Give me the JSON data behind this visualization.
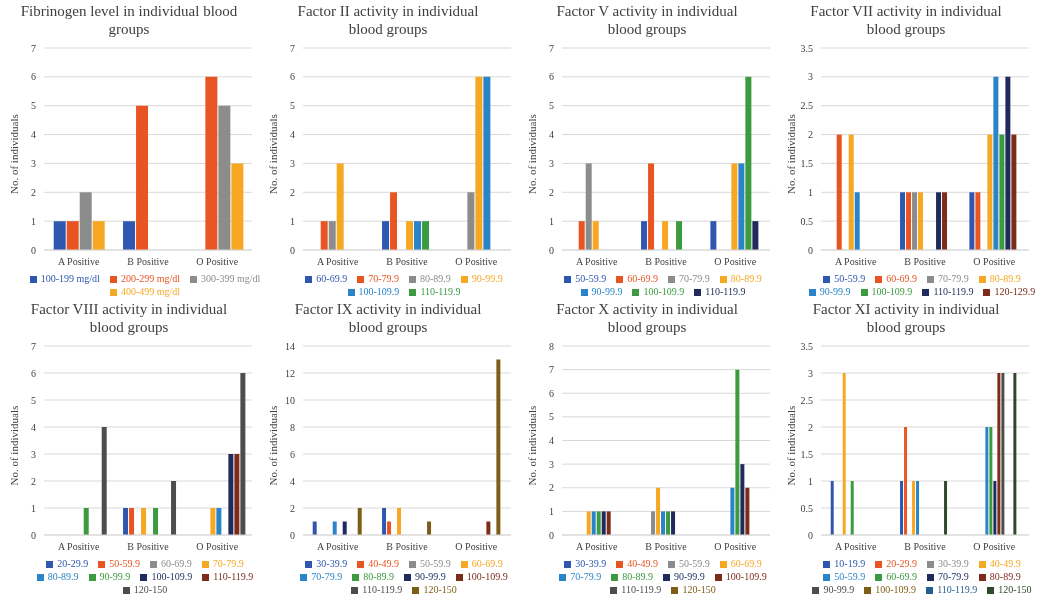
{
  "chart_data": [
    {
      "type": "bar",
      "title": "Fibrinogen level in individual blood groups",
      "ylabel": "No. of individuals",
      "categories": [
        "A Positive",
        "B Positive",
        "O Positive"
      ],
      "ylim": [
        0,
        7
      ],
      "yticks": [
        0,
        1,
        2,
        3,
        4,
        5,
        6,
        7
      ],
      "grid": "y",
      "legend": "bottom",
      "series": [
        {
          "name": "100-199 mg/dl",
          "color": "#3057b0",
          "values": [
            1,
            1,
            0
          ]
        },
        {
          "name": "200-299 mg/dl",
          "color": "#e85523",
          "values": [
            1,
            5,
            6
          ]
        },
        {
          "name": "300-399 mg/dl",
          "color": "#8c8c8c",
          "values": [
            2,
            0,
            5
          ]
        },
        {
          "name": "400-499 mg/dl",
          "color": "#f7a823",
          "values": [
            1,
            0,
            3
          ]
        }
      ]
    },
    {
      "type": "bar",
      "title": "Factor II activity in individual blood groups",
      "ylabel": "No. of individuals",
      "categories": [
        "A Positive",
        "B Positive",
        "O Positive"
      ],
      "ylim": [
        0,
        7
      ],
      "yticks": [
        0,
        1,
        2,
        3,
        4,
        5,
        6,
        7
      ],
      "grid": "y",
      "legend": "bottom",
      "series": [
        {
          "name": "60-69.9",
          "color": "#3057b0",
          "values": [
            0,
            1,
            0
          ]
        },
        {
          "name": "70-79.9",
          "color": "#e85523",
          "values": [
            1,
            2,
            0
          ]
        },
        {
          "name": "80-89.9",
          "color": "#8c8c8c",
          "values": [
            1,
            0,
            2
          ]
        },
        {
          "name": "90-99.9",
          "color": "#f7a823",
          "values": [
            3,
            1,
            6
          ]
        },
        {
          "name": "100-109.9",
          "color": "#2a84c8",
          "values": [
            0,
            1,
            6
          ]
        },
        {
          "name": "110-119.9",
          "color": "#3c9a40",
          "values": [
            0,
            1,
            0
          ]
        }
      ]
    },
    {
      "type": "bar",
      "title": "Factor V activity in individual blood groups",
      "ylabel": "No. of individuals",
      "categories": [
        "A Positive",
        "B Positive",
        "O Positive"
      ],
      "ylim": [
        0,
        7
      ],
      "yticks": [
        0,
        1,
        2,
        3,
        4,
        5,
        6,
        7
      ],
      "grid": "y",
      "legend": "bottom",
      "series": [
        {
          "name": "50-59.9",
          "color": "#3057b0",
          "values": [
            0,
            1,
            1
          ]
        },
        {
          "name": "60-69.9",
          "color": "#e85523",
          "values": [
            1,
            3,
            0
          ]
        },
        {
          "name": "70-79.9",
          "color": "#8c8c8c",
          "values": [
            3,
            0,
            0
          ]
        },
        {
          "name": "80-89.9",
          "color": "#f7a823",
          "values": [
            1,
            1,
            3
          ]
        },
        {
          "name": "90-99.9",
          "color": "#2a84c8",
          "values": [
            0,
            0,
            3
          ]
        },
        {
          "name": "100-109.9",
          "color": "#3c9a40",
          "values": [
            0,
            1,
            6
          ]
        },
        {
          "name": "110-119.9",
          "color": "#1f2b5c",
          "values": [
            0,
            0,
            1
          ]
        }
      ]
    },
    {
      "type": "bar",
      "title": "Factor VII activity in individual blood groups",
      "ylabel": "No. of individuals",
      "categories": [
        "A Positive",
        "B Positive",
        "O Positive"
      ],
      "ylim": [
        0,
        3.5
      ],
      "yticks": [
        0,
        0.5,
        1,
        1.5,
        2,
        2.5,
        3,
        3.5
      ],
      "grid": "y",
      "legend": "bottom",
      "series": [
        {
          "name": "50-59.9",
          "color": "#3057b0",
          "values": [
            0,
            1,
            1
          ]
        },
        {
          "name": "60-69.9",
          "color": "#e85523",
          "values": [
            2,
            1,
            1
          ]
        },
        {
          "name": "70-79.9",
          "color": "#8c8c8c",
          "values": [
            0,
            1,
            0
          ]
        },
        {
          "name": "80-89.9",
          "color": "#f7a823",
          "values": [
            2,
            1,
            2
          ]
        },
        {
          "name": "90-99.9",
          "color": "#2a84c8",
          "values": [
            1,
            0,
            3
          ]
        },
        {
          "name": "100-109.9",
          "color": "#3c9a40",
          "values": [
            0,
            0,
            2
          ]
        },
        {
          "name": "110-119.9",
          "color": "#1f2b5c",
          "values": [
            0,
            1,
            3
          ]
        },
        {
          "name": "120-129.9",
          "color": "#7e2c1a",
          "values": [
            0,
            1,
            2
          ]
        }
      ]
    },
    {
      "type": "bar",
      "title": "Factor VIII activity in individual blood groups",
      "ylabel": "No. of individuals",
      "categories": [
        "A Positive",
        "B Positive",
        "O Positive"
      ],
      "ylim": [
        0,
        7
      ],
      "yticks": [
        0,
        1,
        2,
        3,
        4,
        5,
        6,
        7
      ],
      "grid": "y",
      "legend": "bottom",
      "series": [
        {
          "name": "20-29.9",
          "color": "#3057b0",
          "values": [
            0,
            1,
            0
          ]
        },
        {
          "name": "50-59.9",
          "color": "#e85523",
          "values": [
            0,
            1,
            0
          ]
        },
        {
          "name": "60-69.9",
          "color": "#8c8c8c",
          "values": [
            0,
            0,
            0
          ]
        },
        {
          "name": "70-79.9",
          "color": "#f7a823",
          "values": [
            0,
            1,
            1
          ]
        },
        {
          "name": "80-89.9",
          "color": "#2a84c8",
          "values": [
            0,
            0,
            1
          ]
        },
        {
          "name": "90-99.9",
          "color": "#3c9a40",
          "values": [
            1,
            1,
            0
          ]
        },
        {
          "name": "100-109.9",
          "color": "#1f2b5c",
          "values": [
            0,
            0,
            3
          ]
        },
        {
          "name": "110-119.9",
          "color": "#7e2c1a",
          "values": [
            0,
            0,
            3
          ]
        },
        {
          "name": "120-150",
          "color": "#4d4d4d",
          "values": [
            4,
            2,
            6
          ]
        }
      ]
    },
    {
      "type": "bar",
      "title": "Factor IX activity in individual blood groups",
      "ylabel": "No. of individuals",
      "categories": [
        "A Positive",
        "B Positive",
        "O Positive"
      ],
      "ylim": [
        0,
        14
      ],
      "yticks": [
        0,
        2,
        4,
        6,
        8,
        10,
        12,
        14
      ],
      "grid": "y",
      "legend": "bottom",
      "series": [
        {
          "name": "30-39.9",
          "color": "#3057b0",
          "values": [
            1,
            2,
            0
          ]
        },
        {
          "name": "40-49.9",
          "color": "#e85523",
          "values": [
            0,
            1,
            0
          ]
        },
        {
          "name": "50-59.9",
          "color": "#8c8c8c",
          "values": [
            0,
            0,
            0
          ]
        },
        {
          "name": "60-69.9",
          "color": "#f7a823",
          "values": [
            0,
            2,
            0
          ]
        },
        {
          "name": "70-79.9",
          "color": "#2a84c8",
          "values": [
            1,
            0,
            0
          ]
        },
        {
          "name": "80-89.9",
          "color": "#3c9a40",
          "values": [
            0,
            0,
            0
          ]
        },
        {
          "name": "90-99.9",
          "color": "#1f2b5c",
          "values": [
            1,
            0,
            0
          ]
        },
        {
          "name": "100-109.9",
          "color": "#7e2c1a",
          "values": [
            0,
            0,
            1
          ]
        },
        {
          "name": "110-119.9",
          "color": "#4d4d4d",
          "values": [
            0,
            0,
            0
          ]
        },
        {
          "name": "120-150",
          "color": "#7d5e16",
          "values": [
            2,
            1,
            13
          ]
        }
      ]
    },
    {
      "type": "bar",
      "title": "Factor X activity in individual blood groups",
      "ylabel": "No. of individuals",
      "categories": [
        "A Positive",
        "B Positive",
        "O Positive"
      ],
      "ylim": [
        0,
        8
      ],
      "yticks": [
        0,
        1,
        2,
        3,
        4,
        5,
        6,
        7,
        8
      ],
      "grid": "y",
      "legend": "bottom",
      "series": [
        {
          "name": "30-39.9",
          "color": "#3057b0",
          "values": [
            0,
            0,
            0
          ]
        },
        {
          "name": "40-49.9",
          "color": "#e85523",
          "values": [
            0,
            0,
            0
          ]
        },
        {
          "name": "50-59.9",
          "color": "#8c8c8c",
          "values": [
            0,
            1,
            0
          ]
        },
        {
          "name": "60-69.9",
          "color": "#f7a823",
          "values": [
            1,
            2,
            0
          ]
        },
        {
          "name": "70-79.9",
          "color": "#2a84c8",
          "values": [
            1,
            1,
            2
          ]
        },
        {
          "name": "80-89.9",
          "color": "#3c9a40",
          "values": [
            1,
            1,
            7
          ]
        },
        {
          "name": "90-99.9",
          "color": "#1f2b5c",
          "values": [
            1,
            1,
            3
          ]
        },
        {
          "name": "100-109.9",
          "color": "#7e2c1a",
          "values": [
            1,
            0,
            2
          ]
        },
        {
          "name": "110-119.9",
          "color": "#4d4d4d",
          "values": [
            0,
            0,
            0
          ]
        },
        {
          "name": "120-150",
          "color": "#7d5e16",
          "values": [
            0,
            0,
            0
          ]
        }
      ]
    },
    {
      "type": "bar",
      "title": "Factor XI activity in individual blood groups",
      "ylabel": "No. of individuals",
      "categories": [
        "A Positive",
        "B Positive",
        "O Positive"
      ],
      "ylim": [
        0,
        3.5
      ],
      "yticks": [
        0,
        0.5,
        1,
        1.5,
        2,
        2.5,
        3,
        3.5
      ],
      "grid": "y",
      "legend": "bottom",
      "series": [
        {
          "name": "10-19.9",
          "color": "#3057b0",
          "values": [
            1,
            1,
            0
          ]
        },
        {
          "name": "20-29.9",
          "color": "#e85523",
          "values": [
            0,
            2,
            0
          ]
        },
        {
          "name": "30-39.9",
          "color": "#8c8c8c",
          "values": [
            0,
            0,
            0
          ]
        },
        {
          "name": "40-49.9",
          "color": "#f7a823",
          "values": [
            3,
            1,
            0
          ]
        },
        {
          "name": "50-59.9",
          "color": "#2a84c8",
          "values": [
            0,
            1,
            2
          ]
        },
        {
          "name": "60-69.9",
          "color": "#3c9a40",
          "values": [
            1,
            0,
            2
          ]
        },
        {
          "name": "70-79.9",
          "color": "#1f2b5c",
          "values": [
            0,
            0,
            1
          ]
        },
        {
          "name": "80-89.9",
          "color": "#7e2c1a",
          "values": [
            0,
            0,
            3
          ]
        },
        {
          "name": "90-99.9",
          "color": "#4d4d4d",
          "values": [
            0,
            0,
            3
          ]
        },
        {
          "name": "100-109.9",
          "color": "#7d5e16",
          "values": [
            0,
            0,
            0
          ]
        },
        {
          "name": "110-119.9",
          "color": "#255e91",
          "values": [
            0,
            0,
            0
          ]
        },
        {
          "name": "120-150",
          "color": "#2f4a2a",
          "values": [
            0,
            1,
            3
          ]
        }
      ]
    }
  ]
}
